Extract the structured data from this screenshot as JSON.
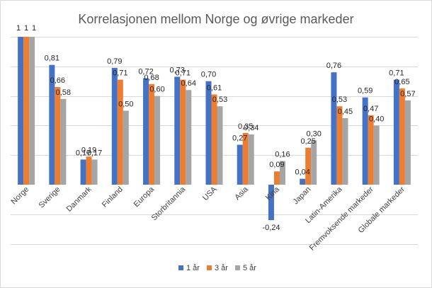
{
  "chart_data": {
    "type": "bar",
    "title": "Korrelasjonen mellom Norge og øvrige markeder",
    "categories": [
      "Norge",
      "Sverige",
      "Danmark",
      "Finland",
      "Europa",
      "Storbritannia",
      "USA",
      "Asia",
      "Kina",
      "Japan",
      "Latin-Amerika",
      "Fremvoksende markeder",
      "Globale markeder"
    ],
    "series": [
      {
        "name": "1 år",
        "color": "#4472c4",
        "values": [
          1,
          0.81,
          0.17,
          0.79,
          0.72,
          0.73,
          0.7,
          0.27,
          -0.24,
          0.04,
          0.76,
          0.59,
          0.71
        ],
        "labels": [
          "1",
          "0,81",
          "0,17",
          "0,79",
          "0,72",
          "0,73",
          "0,70",
          "0,27",
          "-0,24",
          "0,04",
          "0,76",
          "0,59",
          "0,71"
        ]
      },
      {
        "name": "3 år",
        "color": "#ed7d31",
        "values": [
          1,
          0.66,
          0.19,
          0.71,
          0.68,
          0.71,
          0.61,
          0.35,
          0.09,
          0.25,
          0.53,
          0.47,
          0.65
        ],
        "labels": [
          "1",
          "0,66",
          "0,19",
          "0,71",
          "0,68",
          "0,71",
          "0,61",
          "0,35",
          "0,09",
          "0,25",
          "0,53",
          "0,47",
          "0,65"
        ]
      },
      {
        "name": "5 år",
        "color": "#a5a5a5",
        "values": [
          1,
          0.58,
          0.17,
          0.5,
          0.6,
          0.64,
          0.53,
          0.34,
          0.16,
          0.3,
          0.45,
          0.4,
          0.57
        ],
        "labels": [
          "1",
          "0,58",
          "0,17",
          "0,50",
          "0,60",
          "0,64",
          "0,53",
          "0,34",
          "0,16",
          "0,30",
          "0,45",
          "0,40",
          "0,57"
        ]
      }
    ],
    "ylim": [
      -0.4,
      1.0
    ],
    "grid": true,
    "legend": "bottom"
  }
}
